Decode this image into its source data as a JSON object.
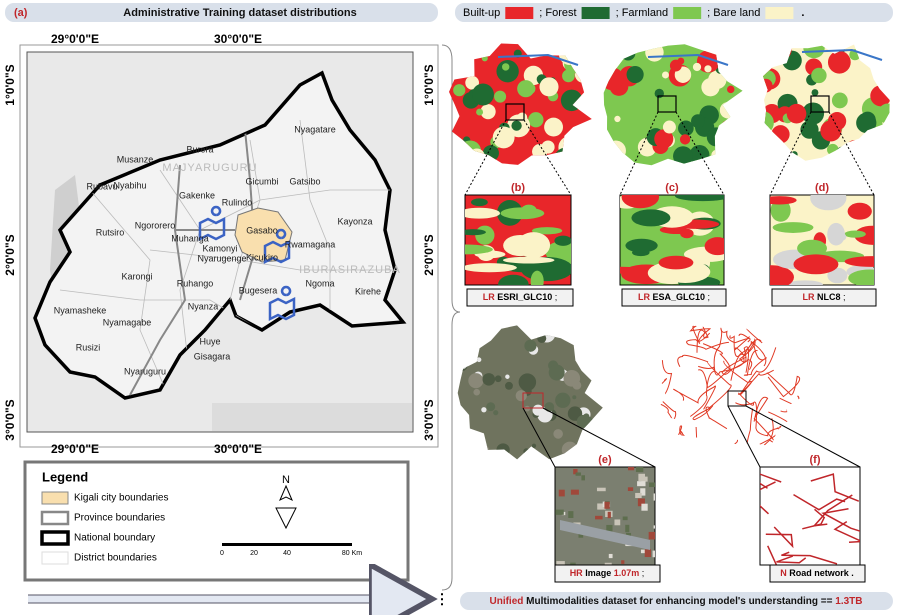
{
  "header": {
    "panel": "(a)",
    "title": "Administrative Training dataset distributions"
  },
  "land_cover_legend": {
    "items": [
      {
        "label": "Built-up",
        "color": "#e8262a"
      },
      {
        "label": "; Forest",
        "color": "#1f6b32"
      },
      {
        "label": "; Farmland",
        "color": "#7ec850"
      },
      {
        "label": "; Bare land",
        "color": "#fbf3c8"
      }
    ],
    "end": "."
  },
  "map": {
    "longitudes": [
      "29°0'0\"E",
      "30°0'0\"E"
    ],
    "latitudes": [
      "1°0'0\"S",
      "2°0'0\"S",
      "3°0'0\"S"
    ],
    "regions": [
      "MAJYARUGURU",
      "IBURASIRAZUBA"
    ],
    "districts": [
      "Nyagatare",
      "Burera",
      "Musanze",
      "Gicumbi",
      "Gatsibo",
      "Rubavu",
      "Nyabihu",
      "Gakenke",
      "Rulindo",
      "Rutsiro",
      "Ngororero",
      "Muhanga",
      "Gasabo",
      "Kayonza",
      "Kamonyi",
      "Nyarugenge",
      "Kicukiro",
      "Rwamagana",
      "Karongi",
      "Ruhango",
      "Nyanza",
      "Bugesera",
      "Ngoma",
      "Kirehe",
      "Nyamasheke",
      "Nyamagabe",
      "Huye",
      "Rusizi",
      "Gisagara",
      "Nyaruguru"
    ]
  },
  "legend": {
    "title": "Legend",
    "items": [
      "Kigali city boundaries",
      "Province boundaries",
      "National  boundary",
      "District boundaries"
    ],
    "north": "N",
    "scale": [
      "0",
      "20",
      "40",
      "80 Km"
    ]
  },
  "panels": [
    {
      "label": "(b)",
      "prefix": "LR",
      "name": "ESRI_GLC10",
      "suffix": ";"
    },
    {
      "label": "(c)",
      "prefix": "LR",
      "name": "ESA_GLC10",
      "suffix": ";"
    },
    {
      "label": "(d)",
      "prefix": "LR",
      "name": "NLC8",
      "suffix": ";"
    },
    {
      "label": "(e)",
      "prefix": "HR",
      "name": "Image",
      "resolution": "1.07m",
      "suffix": ";"
    },
    {
      "label": "(f)",
      "prefix": "N",
      "name": "Road network",
      "suffix": "."
    }
  ],
  "footer": {
    "lead": "Unified",
    "text": "Multimodalities dataset for enhancing model's understanding ==",
    "size": "1.3TB"
  }
}
